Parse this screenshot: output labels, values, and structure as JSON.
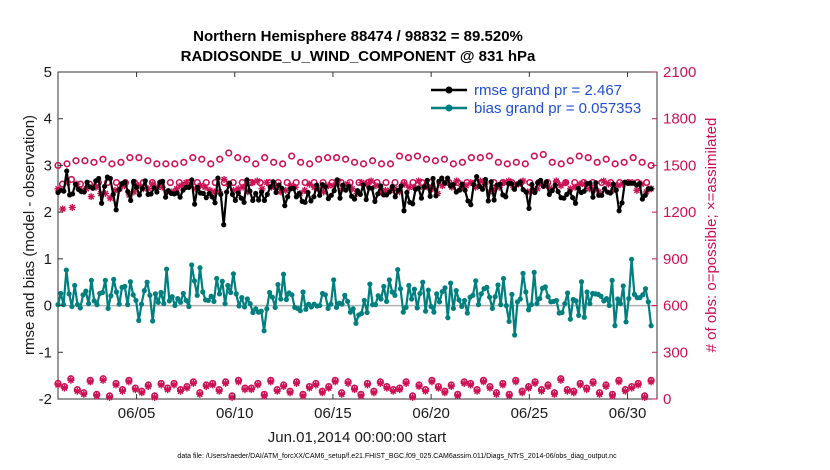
{
  "chart_data": {
    "type": "line",
    "title": "Northern Hemisphere 88474 / 98832 = 89.520%",
    "subtitle": "RADIOSONDE_U_WIND_COMPONENT @ 831 hPa",
    "xlabel": "Jun.01,2014 00:00:00 start",
    "ylabel": "rmse and bias (model - observation)",
    "ylabel_right": "# of obs: o=possible; ×=assimilated",
    "xlim": [
      1,
      31.5
    ],
    "ylim": [
      -2,
      5
    ],
    "ylim_right": [
      0,
      2100
    ],
    "xticks": [
      5,
      10,
      15,
      20,
      25,
      30
    ],
    "xtick_labels": [
      "06/05",
      "06/10",
      "06/15",
      "06/20",
      "06/25",
      "06/30"
    ],
    "yticks": [
      -2,
      -1,
      0,
      1,
      2,
      3,
      4,
      5
    ],
    "ytick_labels": [
      "-2",
      "-1",
      "0",
      "1",
      "2",
      "3",
      "4",
      "5"
    ],
    "yticks_right": [
      0,
      300,
      600,
      900,
      1200,
      1500,
      1800,
      2100
    ],
    "ytick_labels_right": [
      "0",
      "300",
      "600",
      "900",
      "1200",
      "1500",
      "1800",
      "2100"
    ],
    "legend": {
      "position": "top-right",
      "entries": [
        "rmse grand pr = 2.467",
        "bias grand pr = 0.057353"
      ]
    },
    "footnote": "data file: /Users/raeder/DAI/ATM_forcXX/CAM6_setup/f.e21.FHIST_BGC.f09_025.CAM6assim.011/Diags_NTrS_2014-06/obs_diag_output.nc",
    "colors": {
      "rmse": "#000000",
      "bias": "#007f7f",
      "obs": "#cc1155",
      "zero_line": "#b0b0b0"
    },
    "x_start": 1,
    "x_step": 0.25,
    "series": [
      {
        "name": "rmse",
        "axis": "left",
        "values": [
          2.42,
          2.47,
          2.45,
          2.88,
          2.37,
          2.39,
          2.6,
          2.49,
          2.44,
          2.43,
          2.64,
          2.54,
          2.51,
          2.67,
          2.72,
          2.19,
          2.55,
          2.75,
          2.72,
          2.38,
          2.05,
          2.48,
          2.61,
          2.64,
          2.44,
          2.25,
          2.66,
          2.53,
          2.37,
          2.51,
          2.67,
          2.38,
          2.39,
          2.52,
          2.43,
          2.64,
          2.66,
          2.32,
          2.46,
          2.4,
          2.39,
          2.41,
          2.32,
          2.47,
          2.53,
          2.53,
          2.69,
          2.17,
          2.53,
          2.41,
          2.4,
          2.31,
          2.4,
          2.33,
          2.2,
          2.73,
          2.38,
          1.73,
          2.43,
          2.62,
          2.38,
          2.25,
          2.41,
          2.3,
          2.21,
          2.69,
          2.45,
          2.25,
          2.4,
          2.26,
          2.43,
          2.25,
          2.38,
          2.54,
          2.65,
          2.42,
          2.58,
          2.51,
          2.14,
          2.33,
          2.5,
          2.51,
          2.33,
          2.4,
          2.23,
          2.21,
          2.42,
          2.24,
          2.33,
          2.58,
          2.36,
          2.59,
          2.54,
          2.29,
          2.36,
          2.46,
          2.69,
          2.3,
          2.58,
          2.47,
          2.55,
          2.34,
          2.28,
          2.46,
          2.38,
          2.58,
          2.27,
          2.52,
          2.51,
          2.23,
          2.39,
          2.56,
          2.37,
          2.37,
          2.43,
          2.55,
          2.33,
          2.47,
          2.56,
          2.03,
          2.42,
          2.21,
          2.18,
          2.49,
          2.52,
          2.3,
          2.54,
          2.68,
          2.34,
          2.72,
          2.35,
          2.66,
          2.73,
          2.62,
          2.73,
          2.56,
          2.59,
          2.43,
          2.47,
          2.6,
          2.47,
          2.24,
          2.16,
          2.59,
          2.76,
          2.55,
          2.49,
          2.7,
          2.24,
          2.65,
          2.26,
          2.58,
          2.6,
          2.37,
          2.33,
          2.61,
          2.61,
          2.49,
          2.6,
          2.64,
          2.48,
          2.43,
          2.08,
          2.59,
          2.42,
          2.63,
          2.68,
          2.55,
          2.65,
          2.38,
          2.46,
          2.58,
          2.44,
          2.31,
          2.3,
          2.38,
          2.44,
          2.31,
          2.19,
          2.51,
          2.42,
          2.45,
          2.61,
          2.62,
          2.32,
          2.63,
          2.36,
          2.36,
          2.5,
          2.43,
          2.41,
          2.6,
          2.47,
          2.03,
          2.2,
          2.64,
          2.62,
          2.62,
          2.62,
          2.58,
          2.61,
          2.28,
          2.36,
          2.5,
          2.5
        ]
      },
      {
        "name": "bias",
        "axis": "left",
        "values": [
          0.02,
          0.26,
          0.02,
          0.76,
          0.25,
          -0.02,
          0.43,
          0.02,
          -0.05,
          0.23,
          0.31,
          0.04,
          0.54,
          0.1,
          0.02,
          0.26,
          0.28,
          0.54,
          -0.06,
          0.21,
          0.56,
          0.29,
          0.03,
          0.39,
          0.41,
          0.02,
          0.51,
          0.23,
          0.11,
          -0.32,
          0.03,
          0.32,
          0.5,
          0.22,
          -0.33,
          0.25,
          0.07,
          0.28,
          0.04,
          0.78,
          0.1,
          0.19,
          -0.0,
          0.15,
          0.07,
          0.26,
          0.11,
          -0.02,
          0.87,
          0.53,
          0.22,
          0.81,
          0.29,
          0.12,
          0.11,
          0.2,
          0.09,
          0.58,
          0.25,
          0.52,
          0.04,
          0.43,
          0.28,
          0.68,
          0.25,
          -0.01,
          0.17,
          -0.03,
          0.14,
          0.04,
          -0.15,
          -0.07,
          -0.14,
          -0.12,
          -0.54,
          -0.07,
          0.28,
          0.18,
          -0.04,
          0.45,
          0.14,
          0.67,
          0.13,
          0.27,
          0.23,
          -0.04,
          -0.06,
          -0.11,
          0.29,
          -0.08,
          0.03,
          -0.03,
          0.03,
          -0.01,
          0.0,
          0.26,
          0.23,
          -0.06,
          0.03,
          0.55,
          -0.04,
          0.05,
          0.03,
          0.22,
          0.09,
          -0.14,
          -0.07,
          -0.38,
          -0.2,
          -0.17,
          0.11,
          -0.15,
          0.46,
          0.02,
          0.02,
          0.21,
          0.14,
          0.41,
          0.09,
          0.55,
          0.29,
          0.22,
          0.77,
          0.36,
          -0.14,
          -0.04,
          0.43,
          0.14,
          0.35,
          -0.05,
          0.26,
          0.5,
          -0.12,
          0.33,
          -0.02,
          -0.14,
          0.25,
          0.08,
          0.3,
          0.38,
          -0.26,
          0.48,
          -0.06,
          0.32,
          0.12,
          -0.02,
          0.11,
          -0.16,
          0.18,
          0.22,
          0.53,
          0.02,
          0.25,
          0.36,
          0.39,
          0.18,
          -0.06,
          0.19,
          0.44,
          0.02,
          0.58,
          -0.0,
          -0.34,
          0.24,
          -0.63,
          0.08,
          0.14,
          0.69,
          0.29,
          -0.09,
          0.02,
          0.71,
          0.04,
          0.15,
          0.37,
          0.4,
          0.19,
          0.08,
          0.09,
          0.11,
          -0.16,
          -0.15,
          0.04,
          0.27,
          -0.29,
          0.13,
          0.1,
          -0.21,
          0.51,
          -0.25,
          0.29,
          0.04,
          0.26,
          0.25,
          0.24,
          0.2,
          0.1,
          0.15,
          0.0,
          0.54,
          -0.43,
          0.14,
          0.04,
          0.42,
          -0.35,
          0.15,
          0.99,
          0.24,
          0.17,
          0.17,
          0.23,
          0.36,
          0.08,
          -0.43
        ]
      },
      {
        "name": "obs_possible",
        "axis": "right",
        "values": [
          1500,
          1380,
          1510,
          1410,
          1530,
          1380,
          1530,
          1380,
          1520,
          1390,
          1540,
          1390,
          1510,
          1390,
          1520,
          1390,
          1550,
          1390,
          1550,
          1390,
          1530,
          1390,
          1510,
          1390,
          1510,
          1390,
          1510,
          1390,
          1520,
          1390,
          1550,
          1390,
          1540,
          1390,
          1510,
          1390,
          1540,
          1390,
          1580,
          1390,
          1550,
          1390,
          1540,
          1390,
          1510,
          1390,
          1550,
          1390,
          1520,
          1390,
          1510,
          1390,
          1560,
          1390,
          1520,
          1390,
          1510,
          1390,
          1540,
          1390,
          1550,
          1390,
          1550,
          1390,
          1540,
          1390,
          1520,
          1390,
          1510,
          1390,
          1530,
          1390,
          1510,
          1390,
          1510,
          1390,
          1560,
          1390,
          1550,
          1390,
          1560,
          1390,
          1540,
          1390,
          1530,
          1390,
          1540,
          1390,
          1510,
          1390,
          1520,
          1390,
          1550,
          1390,
          1550,
          1390,
          1560,
          1390,
          1520,
          1390,
          1510,
          1390,
          1520,
          1390,
          1510,
          1390,
          1560,
          1390,
          1570,
          1390,
          1520,
          1390,
          1510,
          1390,
          1530,
          1390,
          1560,
          1390,
          1550,
          1390,
          1520,
          1390,
          1540,
          1390,
          1510,
          1390,
          1520,
          1390,
          1550,
          1390,
          1520,
          1390,
          1500
        ]
      },
      {
        "name": "obs_assimilated",
        "axis": "right",
        "values": [
          1350,
          1220,
          1390,
          1230,
          1380,
          1340,
          1350,
          1300,
          1360,
          1320,
          1320,
          1290,
          1340,
          1350,
          1370,
          1310,
          1330,
          1370,
          1350,
          1350,
          1380,
          1360,
          1360,
          1330,
          1330,
          1350,
          1370,
          1390,
          1380,
          1350,
          1370,
          1360,
          1340,
          1330,
          1330,
          1410,
          1380,
          1340,
          1350,
          1360,
          1330,
          1390,
          1400,
          1350,
          1390,
          1360,
          1370,
          1330,
          1340,
          1370,
          1360,
          1320,
          1340,
          1380,
          1360,
          1350,
          1330,
          1370,
          1370,
          1400,
          1350,
          1380,
          1350,
          1320,
          1390,
          1380,
          1400,
          1370,
          1330,
          1340,
          1340,
          1350,
          1330,
          1380,
          1360,
          1360,
          1400,
          1360,
          1360,
          1350,
          1320,
          1370,
          1390,
          1360,
          1400,
          1350,
          1370,
          1390,
          1360,
          1400,
          1380,
          1330,
          1350,
          1360,
          1390,
          1400,
          1360,
          1380,
          1400,
          1330,
          1340,
          1350,
          1380,
          1370,
          1350,
          1400,
          1370,
          1390,
          1350,
          1360,
          1380,
          1380,
          1350,
          1350,
          1330,
          1400,
          1380,
          1340,
          1370,
          1380,
          1390,
          1390,
          1340,
          1380,
          1330,
          1350
        ]
      },
      {
        "name": "obs_possible_low",
        "axis": "right",
        "values": [
          100,
          80,
          130,
          60,
          40,
          120,
          30,
          130,
          20,
          100,
          60,
          120,
          70,
          50,
          90,
          20,
          100,
          70,
          100,
          60,
          80,
          110,
          40,
          90,
          100,
          60,
          110,
          20,
          120,
          70,
          70,
          100,
          30,
          120,
          60,
          90,
          50,
          110,
          30,
          80,
          100,
          50,
          80,
          120,
          40,
          110,
          70,
          30,
          100,
          50,
          110,
          80,
          60,
          70,
          110,
          20,
          90,
          60,
          120,
          80,
          50,
          90,
          30,
          110,
          100,
          60,
          120,
          80,
          40,
          100,
          30,
          120,
          50,
          80,
          110,
          60,
          90,
          40,
          130,
          60,
          50,
          100,
          70,
          110,
          40,
          90,
          30,
          120,
          60,
          80,
          100,
          20,
          120
        ]
      },
      {
        "name": "obs_assimilated_low",
        "axis": "right",
        "values": [
          90,
          70,
          120,
          50,
          30,
          110,
          20,
          120,
          10,
          90,
          50,
          110,
          60,
          40,
          80,
          10,
          90,
          60,
          90,
          50,
          70,
          100,
          30,
          80,
          90,
          50,
          100,
          10,
          110,
          60,
          60,
          90,
          20,
          110,
          50,
          80,
          40,
          100,
          20,
          70,
          90,
          40,
          70,
          110,
          30,
          100,
          60,
          20,
          90,
          40,
          100,
          70,
          50,
          60,
          100,
          10,
          80,
          50,
          110,
          70,
          40,
          80,
          20,
          100,
          90,
          50,
          110,
          70,
          30,
          90,
          20,
          110,
          40,
          70,
          100,
          50,
          80,
          30,
          120,
          50,
          40,
          90,
          60,
          100,
          30,
          80,
          20,
          110,
          50,
          70,
          90,
          10,
          110
        ]
      }
    ]
  }
}
